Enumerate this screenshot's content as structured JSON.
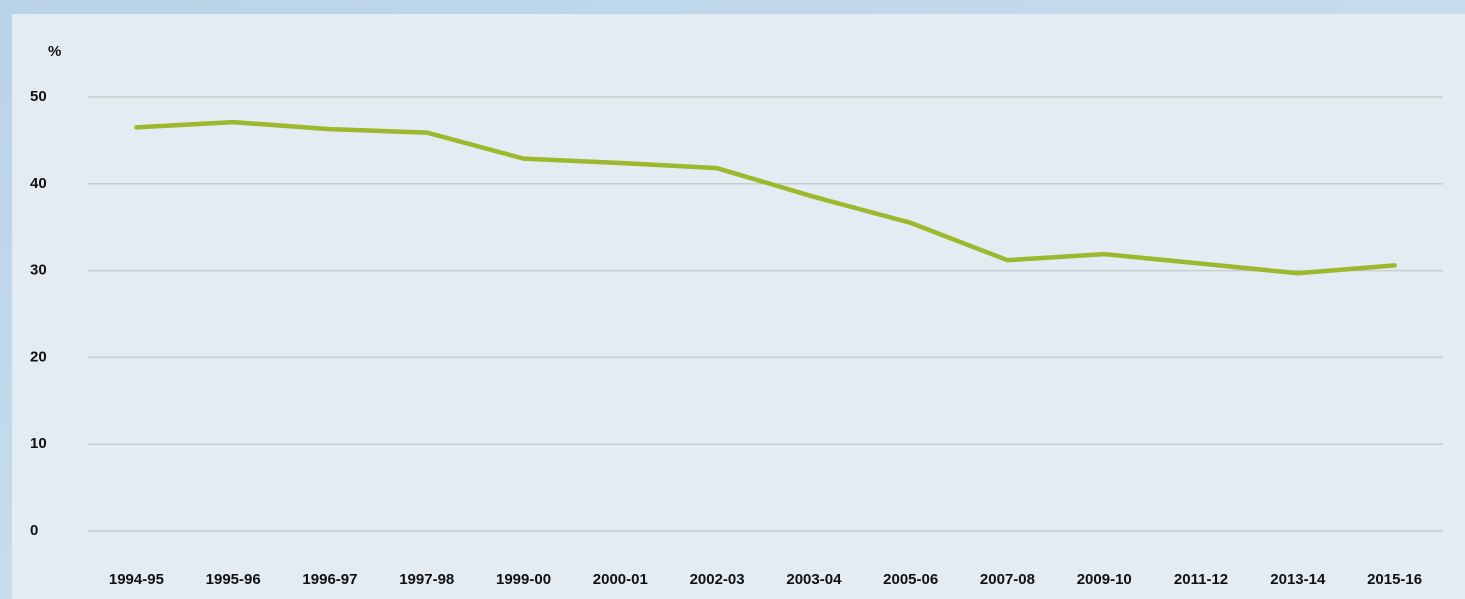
{
  "chart_data": {
    "type": "line",
    "y_axis_label": "%",
    "categories": [
      "1994-95",
      "1995-96",
      "1996-97",
      "1997-98",
      "1999-00",
      "2000-01",
      "2002-03",
      "2003-04",
      "2005-06",
      "2007-08",
      "2009-10",
      "2011-12",
      "2013-14",
      "2015-16"
    ],
    "series": [
      {
        "color": "#9cb82c",
        "values": [
          46.5,
          47.1,
          46.3,
          45.9,
          42.9,
          42.4,
          41.8,
          38.5,
          35.5,
          31.2,
          31.9,
          30.8,
          29.7,
          30.6
        ]
      }
    ],
    "ylim": [
      0,
      50
    ],
    "yticks": [
      0,
      10,
      20,
      30,
      40,
      50
    ],
    "grid": true
  }
}
